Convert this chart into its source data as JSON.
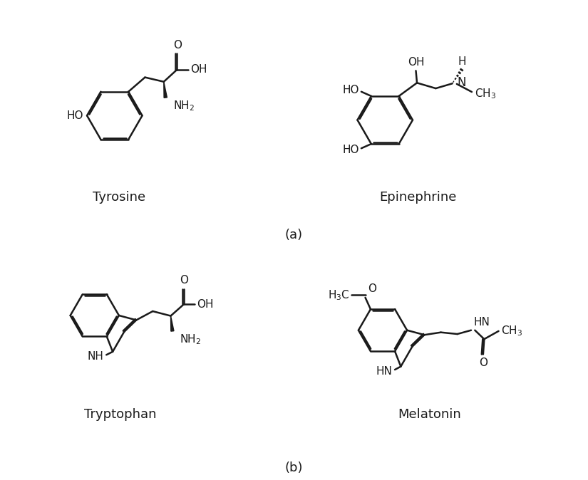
{
  "title_a": "(a)",
  "title_b": "(b)",
  "label_tyrosine": "Tyrosine",
  "label_epinephrine": "Epinephrine",
  "label_tryptophan": "Tryptophan",
  "label_melatonin": "Melatonin",
  "bg_color": "#ffffff",
  "line_color": "#1a1a1a",
  "font_size_label": 13,
  "font_size_atom": 11,
  "line_width": 1.8
}
